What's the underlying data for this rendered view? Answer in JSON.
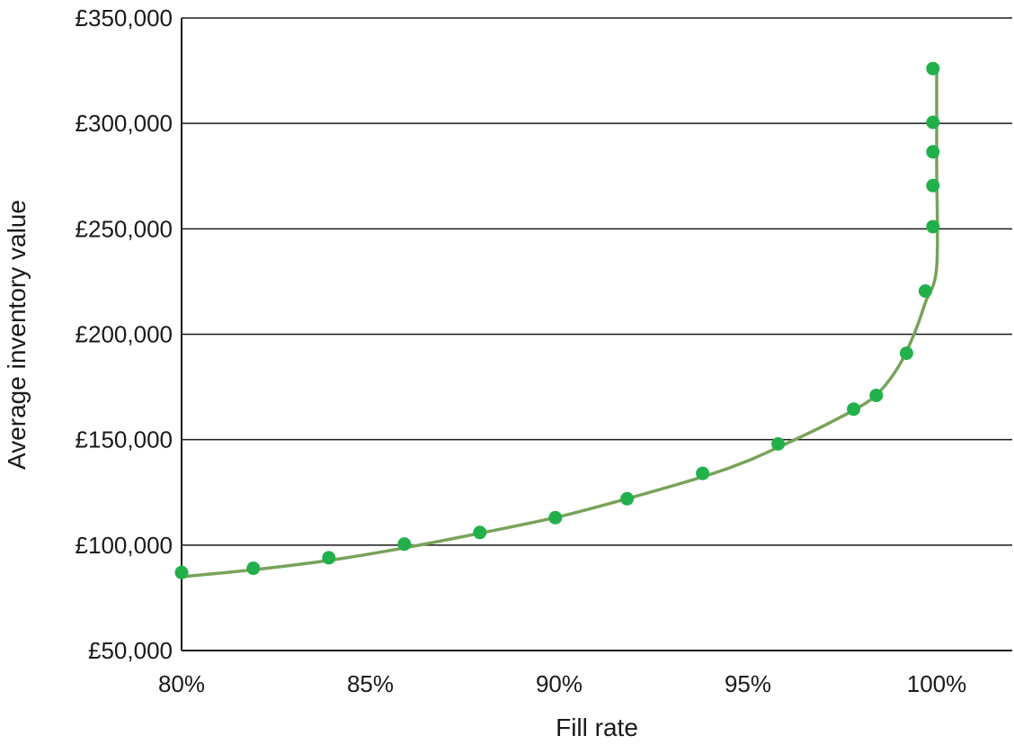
{
  "chart_data": {
    "type": "scatter",
    "title": "",
    "xlabel": "Fill rate",
    "ylabel": "Average inventory value",
    "xlim": [
      80,
      100
    ],
    "ylim": [
      50000,
      350000
    ],
    "x_ticks": [
      80,
      85,
      90,
      95,
      100
    ],
    "x_tick_labels": [
      "80%",
      "85%",
      "90%",
      "95%",
      "100%"
    ],
    "y_ticks": [
      50000,
      100000,
      150000,
      200000,
      250000,
      300000,
      350000
    ],
    "y_tick_labels": [
      "£50,000",
      "£100,000",
      "£150,000",
      "£200,000",
      "£250,000",
      "£300,000",
      "£350,000"
    ],
    "grid": "horizontal",
    "legend": "none",
    "series": [
      {
        "type": "scatter",
        "color": "#22b04b",
        "x": [
          80.0,
          81.9,
          83.9,
          85.9,
          87.9,
          89.9,
          91.8,
          93.8,
          95.8,
          97.8,
          98.4,
          99.2,
          99.7,
          99.9,
          99.9,
          99.9,
          99.9,
          99.9
        ],
        "y": [
          87000,
          89000,
          94000,
          100500,
          106000,
          113000,
          122000,
          134000,
          148000,
          164500,
          171000,
          191000,
          220500,
          251000,
          270500,
          286500,
          300500,
          326000
        ]
      },
      {
        "type": "line",
        "color": "#78a35a",
        "x": [
          80.0,
          82.0,
          84.0,
          86.0,
          88.0,
          90.0,
          92.0,
          94.0,
          95.0,
          96.0,
          97.0,
          98.0,
          98.5,
          99.0,
          99.4,
          99.7,
          100.0,
          100.0,
          100.0
        ],
        "y": [
          85000,
          88500,
          93000,
          99000,
          106000,
          113500,
          123000,
          133500,
          140000,
          148000,
          156500,
          166000,
          173000,
          185000,
          200000,
          215000,
          232000,
          280000,
          327000
        ]
      }
    ]
  }
}
